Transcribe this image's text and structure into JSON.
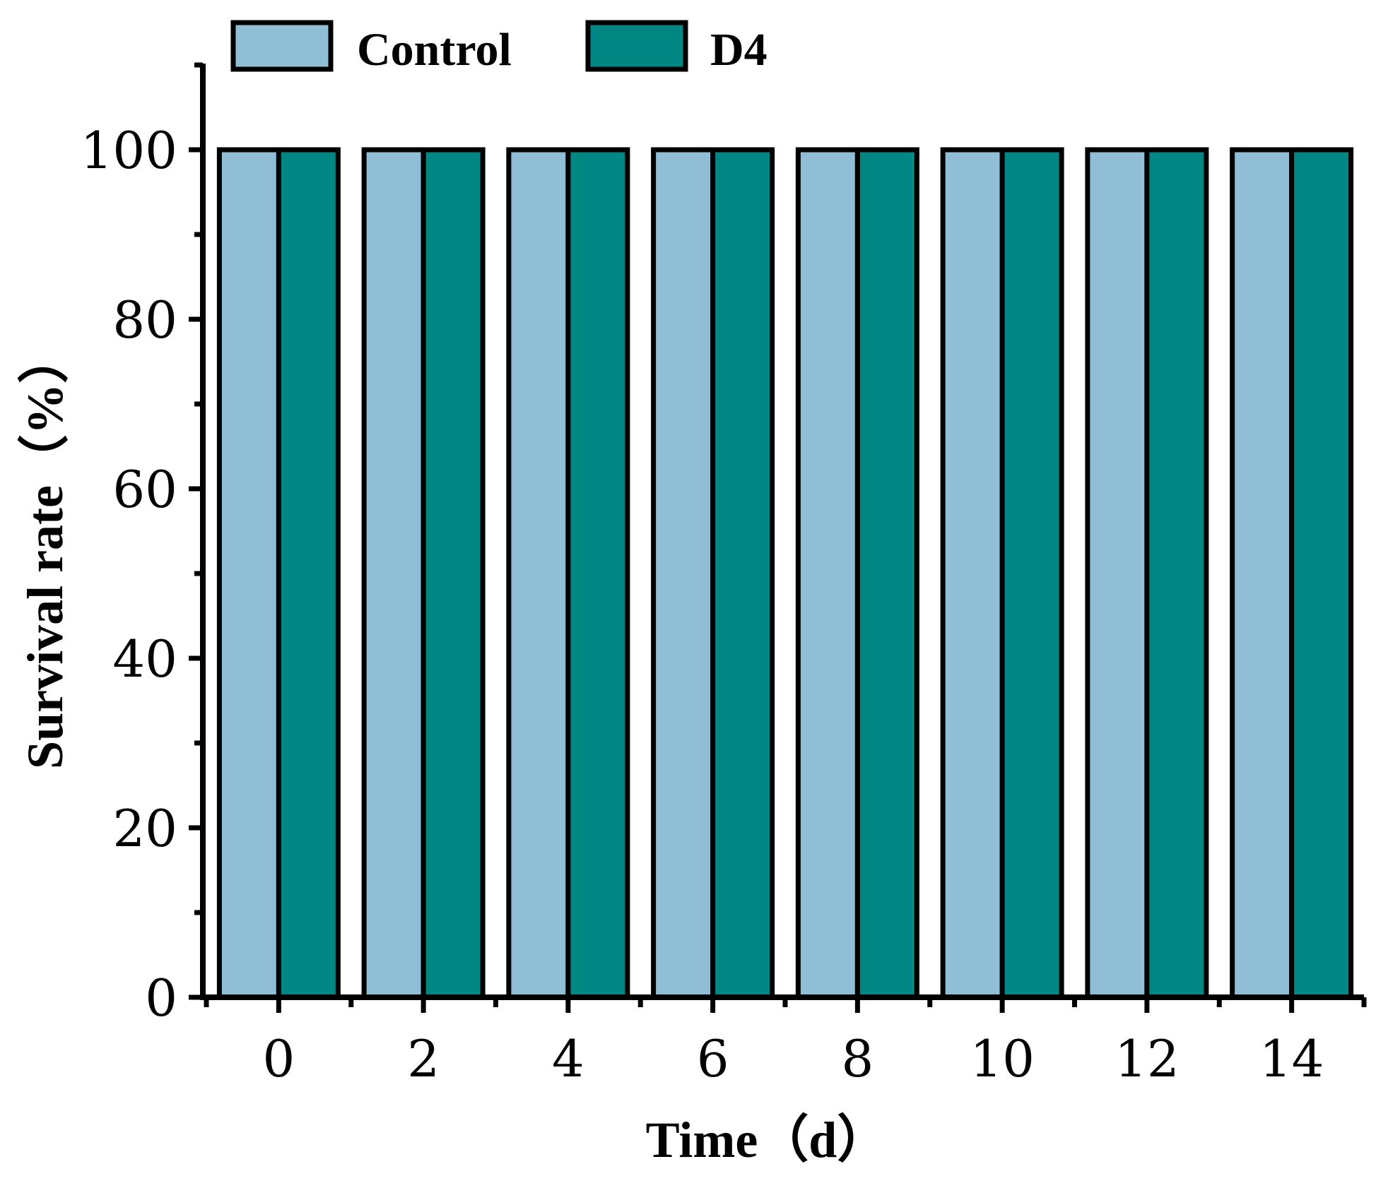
{
  "chart_data": {
    "type": "bar",
    "categories": [
      "0",
      "2",
      "4",
      "6",
      "8",
      "10",
      "12",
      "14"
    ],
    "series": [
      {
        "name": "Control",
        "values": [
          100,
          100,
          100,
          100,
          100,
          100,
          100,
          100
        ],
        "color": "#8fbed6"
      },
      {
        "name": "D4",
        "values": [
          100,
          100,
          100,
          100,
          100,
          100,
          100,
          100
        ],
        "color": "#008784"
      }
    ],
    "xlabel": "Time（d）",
    "ylabel": "Survival rate（%）",
    "ylim": [
      0,
      110
    ],
    "yticks": [
      "0",
      "20",
      "40",
      "60",
      "80",
      "100"
    ],
    "legend_position": "top-left",
    "grid": false
  }
}
